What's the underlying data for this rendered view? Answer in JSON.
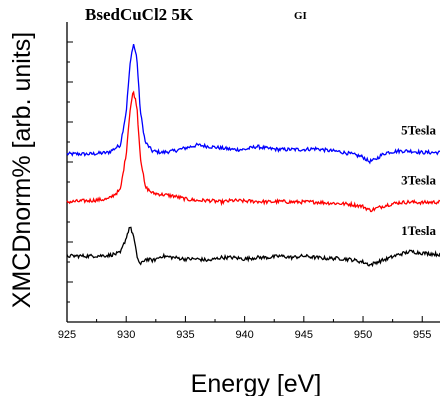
{
  "chart_data": {
    "type": "line",
    "title": "BsedCuCl2 5K",
    "subtitle": "GI",
    "xlabel": "Energy [eV]",
    "ylabel": "XMCDnorm% [arb. units]",
    "xlim": [
      925,
      956.5
    ],
    "xticks": [
      925,
      930,
      935,
      940,
      945,
      950,
      955
    ],
    "y_ticks_labeled": false,
    "grid": false,
    "series": [
      {
        "name": "5Tesla",
        "color": "#0000ff",
        "baseline": 0.56,
        "points": [
          [
            925,
            0.56
          ],
          [
            927,
            0.56
          ],
          [
            928.5,
            0.565
          ],
          [
            929.5,
            0.59
          ],
          [
            930,
            0.7
          ],
          [
            930.3,
            0.85
          ],
          [
            930.6,
            0.93
          ],
          [
            930.9,
            0.88
          ],
          [
            931.2,
            0.7
          ],
          [
            931.6,
            0.6
          ],
          [
            932.2,
            0.57
          ],
          [
            933,
            0.565
          ],
          [
            934,
            0.57
          ],
          [
            935,
            0.58
          ],
          [
            936,
            0.59
          ],
          [
            937,
            0.585
          ],
          [
            938,
            0.58
          ],
          [
            939,
            0.575
          ],
          [
            940,
            0.575
          ],
          [
            941,
            0.585
          ],
          [
            942,
            0.578
          ],
          [
            943,
            0.575
          ],
          [
            944,
            0.575
          ],
          [
            945,
            0.575
          ],
          [
            946,
            0.578
          ],
          [
            947,
            0.572
          ],
          [
            948,
            0.568
          ],
          [
            949,
            0.56
          ],
          [
            950,
            0.55
          ],
          [
            950.5,
            0.535
          ],
          [
            951,
            0.54
          ],
          [
            951.5,
            0.555
          ],
          [
            952,
            0.565
          ],
          [
            953,
            0.57
          ],
          [
            954,
            0.57
          ],
          [
            955,
            0.565
          ],
          [
            956.5,
            0.565
          ]
        ]
      },
      {
        "name": "3Tesla",
        "color": "#ff0000",
        "baseline": 0.4,
        "points": [
          [
            925,
            0.4
          ],
          [
            927,
            0.405
          ],
          [
            928.5,
            0.41
          ],
          [
            929.5,
            0.44
          ],
          [
            930,
            0.56
          ],
          [
            930.3,
            0.7
          ],
          [
            930.6,
            0.77
          ],
          [
            930.9,
            0.72
          ],
          [
            931.2,
            0.55
          ],
          [
            931.6,
            0.45
          ],
          [
            932.2,
            0.43
          ],
          [
            933,
            0.425
          ],
          [
            934,
            0.42
          ],
          [
            935,
            0.41
          ],
          [
            936,
            0.405
          ],
          [
            937,
            0.405
          ],
          [
            938,
            0.4
          ],
          [
            939,
            0.405
          ],
          [
            940,
            0.403
          ],
          [
            941,
            0.402
          ],
          [
            942,
            0.4
          ],
          [
            943,
            0.402
          ],
          [
            944,
            0.4
          ],
          [
            945,
            0.4
          ],
          [
            946,
            0.4
          ],
          [
            947,
            0.397
          ],
          [
            948,
            0.395
          ],
          [
            949,
            0.392
          ],
          [
            950,
            0.385
          ],
          [
            950.6,
            0.372
          ],
          [
            951.2,
            0.38
          ],
          [
            952,
            0.39
          ],
          [
            953,
            0.398
          ],
          [
            954,
            0.4
          ],
          [
            955,
            0.398
          ],
          [
            956.5,
            0.4
          ]
        ]
      },
      {
        "name": "1Tesla",
        "color": "#000000",
        "baseline": 0.215,
        "points": [
          [
            925,
            0.22
          ],
          [
            927,
            0.22
          ],
          [
            928.5,
            0.222
          ],
          [
            929.5,
            0.23
          ],
          [
            930,
            0.28
          ],
          [
            930.3,
            0.32
          ],
          [
            930.6,
            0.29
          ],
          [
            930.9,
            0.22
          ],
          [
            931.2,
            0.19
          ],
          [
            931.6,
            0.21
          ],
          [
            932.3,
            0.205
          ],
          [
            933,
            0.22
          ],
          [
            934,
            0.215
          ],
          [
            935,
            0.21
          ],
          [
            936,
            0.21
          ],
          [
            937,
            0.205
          ],
          [
            938,
            0.215
          ],
          [
            939,
            0.215
          ],
          [
            940,
            0.21
          ],
          [
            941,
            0.215
          ],
          [
            942,
            0.215
          ],
          [
            943,
            0.22
          ],
          [
            944,
            0.215
          ],
          [
            945,
            0.22
          ],
          [
            946,
            0.215
          ],
          [
            947,
            0.212
          ],
          [
            948,
            0.212
          ],
          [
            949,
            0.208
          ],
          [
            950,
            0.2
          ],
          [
            950.6,
            0.19
          ],
          [
            951.2,
            0.2
          ],
          [
            952,
            0.21
          ],
          [
            953,
            0.225
          ],
          [
            954,
            0.235
          ],
          [
            955,
            0.23
          ],
          [
            956.5,
            0.225
          ]
        ]
      }
    ]
  }
}
